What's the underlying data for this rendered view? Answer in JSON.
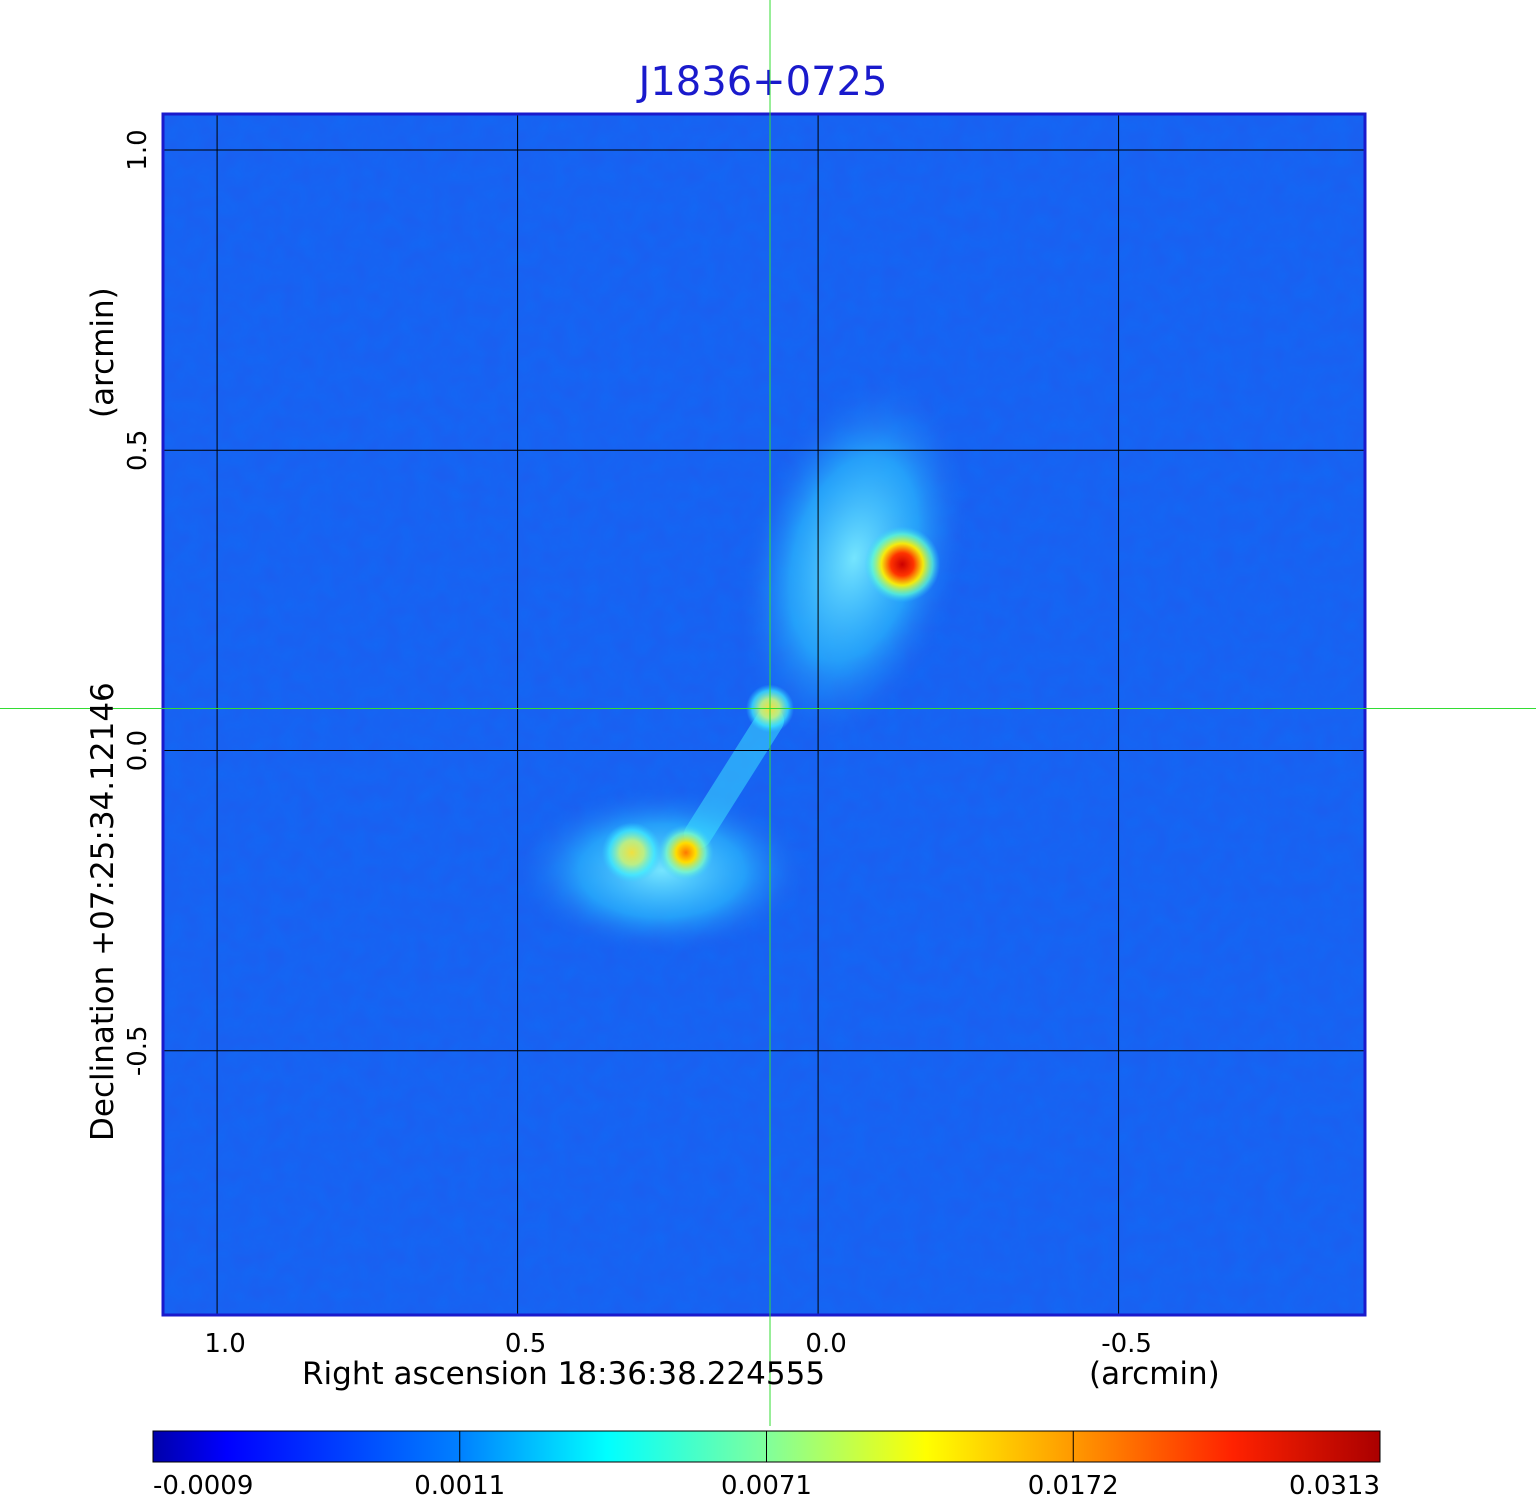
{
  "chart_data": {
    "type": "heatmap",
    "title": "J1836+0725",
    "xlabel": "Right ascension  18:36:38.224555",
    "xunit": "(arcmin)",
    "ylabel": "Declination  +07:25:34.12146",
    "yunit": "(arcmin)",
    "xlim": [
      1.09,
      -0.91
    ],
    "ylim": [
      -0.94,
      1.06
    ],
    "x_ticks": [
      1.0,
      0.5,
      0.0,
      -0.5
    ],
    "x_tick_labels": [
      "1.0",
      "0.5",
      "0.0",
      "-0.5"
    ],
    "y_ticks": [
      1.0,
      0.5,
      0.0,
      -0.5
    ],
    "y_tick_labels": [
      "1.0",
      "0.5",
      "0.0",
      "-0.5"
    ],
    "grid": true,
    "crosshair": {
      "x": 0.08,
      "y": 0.07,
      "color": "#33dd33"
    },
    "sources": [
      {
        "name": "northern lobe hotspot",
        "x": -0.14,
        "y": 0.31,
        "peak": 0.0313
      },
      {
        "name": "core",
        "x": 0.08,
        "y": 0.07,
        "peak": 0.0095
      },
      {
        "name": "southern hotspot 1",
        "x": 0.22,
        "y": -0.17,
        "peak": 0.02
      },
      {
        "name": "southern hotspot 2",
        "x": 0.31,
        "y": -0.17,
        "peak": 0.011
      }
    ],
    "colorbar": {
      "tick_labels": [
        "-0.0009",
        "0.0011",
        "0.0071",
        "0.0172",
        "0.0313"
      ],
      "min": -0.0009,
      "max": 0.0313,
      "colors": [
        "#0000aa",
        "#0033ff",
        "#00ffff",
        "#ffff00",
        "#ff0000",
        "#aa0000"
      ]
    }
  }
}
